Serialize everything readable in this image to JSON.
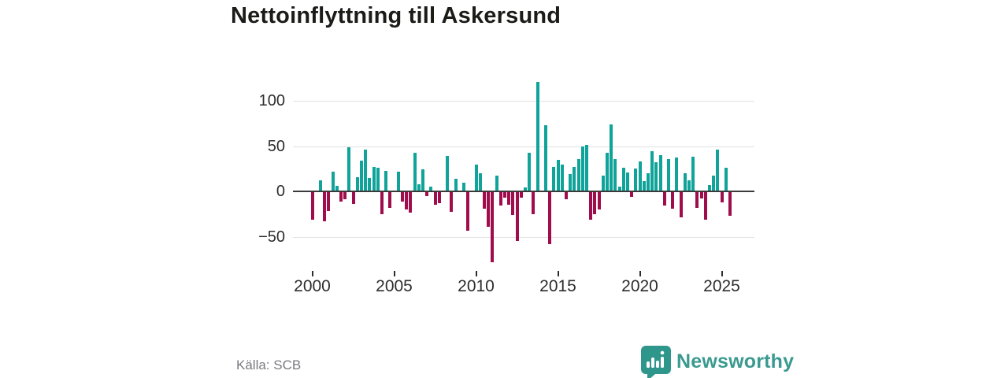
{
  "title": "Nettoinflyttning till Askersund",
  "source_label": "Källa: SCB",
  "branding": {
    "name": "Newsworthy",
    "logo_icon": "speech-bubble-bar-chart",
    "brand_color": "#3a9a90"
  },
  "chart_data": {
    "type": "bar",
    "title": "Nettoinflyttning till Askersund",
    "frequency": "quarterly",
    "start_period": "2000Q1",
    "end_period": "2025Q3",
    "values": [
      -30,
      0,
      12,
      -32,
      -21,
      22,
      6,
      -10,
      -8,
      49,
      -13,
      16,
      34,
      46,
      15,
      27,
      26,
      -24,
      23,
      -17,
      0,
      22,
      -10,
      -19,
      -23,
      43,
      8,
      24,
      -4,
      5,
      -14,
      -12,
      0,
      39,
      -22,
      14,
      0,
      10,
      -43,
      0,
      30,
      20,
      -18,
      -38,
      -77,
      17,
      -15,
      -6,
      -14,
      -25,
      -54,
      -6,
      4,
      43,
      -24,
      121,
      0,
      73,
      -57,
      27,
      35,
      30,
      -8,
      19,
      27,
      36,
      50,
      51,
      -30,
      -24,
      -19,
      17,
      43,
      74,
      36,
      5,
      26,
      21,
      -5,
      25,
      33,
      11,
      20,
      44,
      32,
      40,
      -15,
      36,
      -18,
      37,
      -28,
      20,
      12,
      38,
      -17,
      -7,
      -30,
      7,
      17,
      46,
      -11,
      26,
      -26
    ],
    "y_ticks": [
      {
        "value": 100,
        "label": "100"
      },
      {
        "value": 50,
        "label": "50"
      },
      {
        "value": 0,
        "label": "0"
      },
      {
        "value": -50,
        "label": "−50"
      }
    ],
    "x_ticks": [
      {
        "label": "2000",
        "quarter_index": 0
      },
      {
        "label": "2005",
        "quarter_index": 20
      },
      {
        "label": "2010",
        "quarter_index": 40
      },
      {
        "label": "2015",
        "quarter_index": 60
      },
      {
        "label": "2020",
        "quarter_index": 80
      },
      {
        "label": "2025",
        "quarter_index": 100
      }
    ],
    "ylim": [
      -85,
      135
    ],
    "grid": true,
    "legend": false,
    "positive_color": "#10a39a",
    "negative_color": "#a00d4c"
  }
}
